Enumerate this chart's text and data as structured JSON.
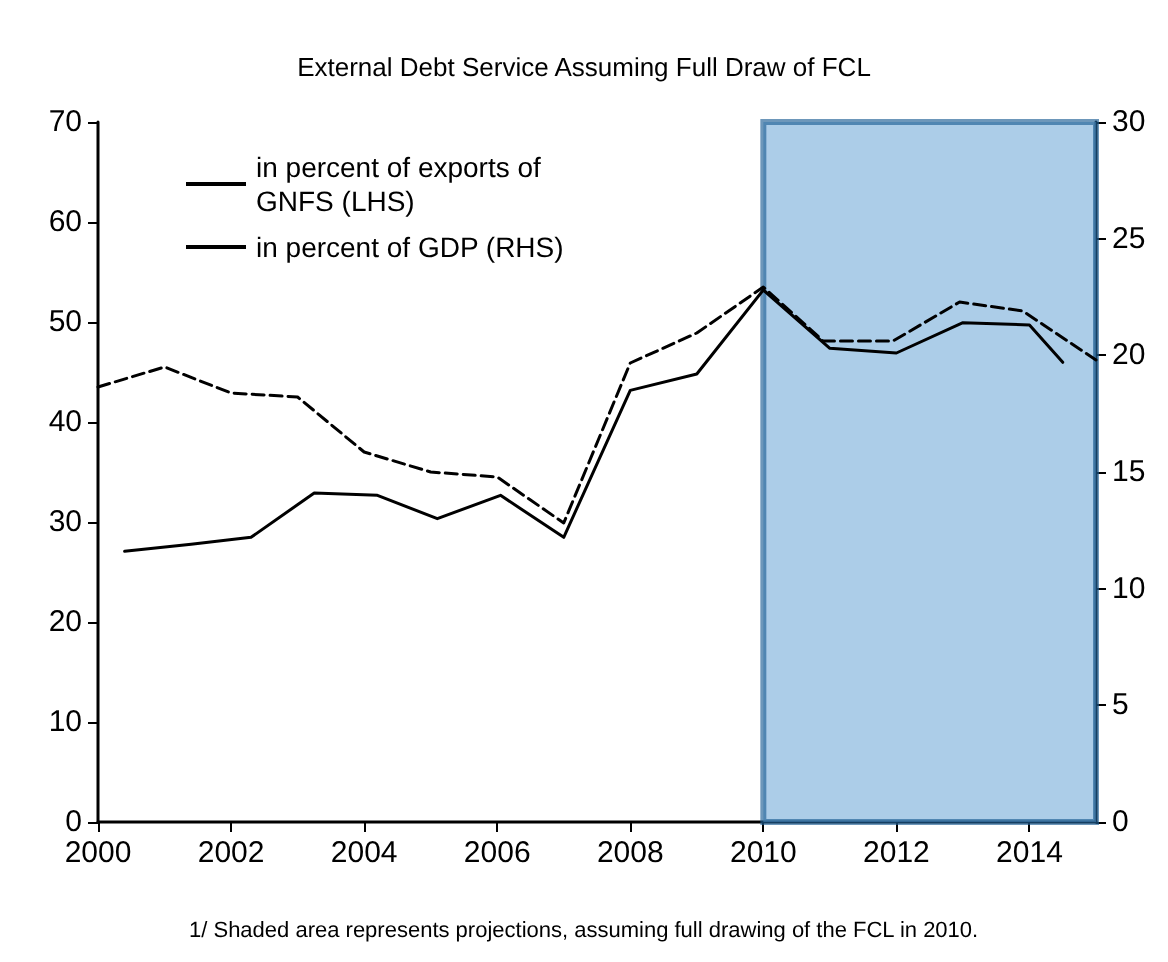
{
  "chart_data": {
    "type": "line",
    "title": "External Debt Service Assuming Full Draw of FCL",
    "series": [
      {
        "name": "in percent of exports of\nGNFS (LHS)",
        "color": "#000000",
        "line_style": "dashed",
        "x": [
          2000,
          2001,
          2002,
          2003,
          2004,
          2005,
          2006,
          2007,
          2008,
          2009,
          2010,
          2010.9,
          2011.95,
          2012.95,
          2013.9,
          2015
        ],
        "values": [
          43.5,
          45.5,
          42.9,
          42.5,
          37.0,
          35.0,
          34.5,
          29.9,
          45.9,
          48.9,
          53.5,
          48.1,
          48.1,
          52.0,
          51.1,
          46.2
        ]
      },
      {
        "name": "in percent of GDP (RHS)",
        "color": "#000000",
        "line_style": "solid",
        "axis": "y2",
        "x": [
          2000.4,
          2001.4,
          2002.3,
          2003.25,
          2004.2,
          2005.1,
          2006.05,
          2007,
          2008,
          2009,
          2010,
          2011,
          2012,
          2013,
          2014,
          2014.5
        ],
        "values": [
          11.6,
          11.9,
          12.2,
          14.1,
          14.0,
          13.0,
          14.0,
          12.2,
          18.5,
          19.2,
          22.8,
          20.3,
          20.1,
          21.4,
          21.3,
          19.7
        ]
      }
    ],
    "xlim": [
      2000,
      2015
    ],
    "xticks": [
      2000,
      2002,
      2004,
      2006,
      2008,
      2010,
      2012,
      2014
    ],
    "ylim": [
      0,
      70
    ],
    "yticks": [
      0,
      10,
      20,
      30,
      40,
      50,
      60,
      70
    ],
    "y2lim": [
      0,
      30
    ],
    "y2ticks": [
      0,
      5,
      10,
      15,
      20,
      25,
      30
    ],
    "bands": [
      {
        "axis": "x",
        "from": 2010,
        "to": 2015,
        "color": "#7fb2dc"
      }
    ],
    "annotations": [
      "1/ Shaded area represents projections, assuming full drawing of the FCL in 2010."
    ],
    "legend": "top left",
    "grid": false,
    "marker": "none"
  }
}
